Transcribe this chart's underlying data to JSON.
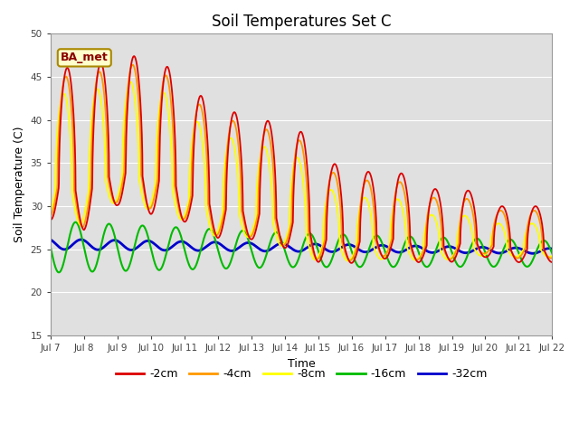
{
  "title": "Soil Temperatures Set C",
  "xlabel": "Time",
  "ylabel": "Soil Temperature (C)",
  "ylim": [
    15,
    50
  ],
  "yticks": [
    15,
    20,
    25,
    30,
    35,
    40,
    45,
    50
  ],
  "x_tick_labels": [
    "Jul 7",
    "Jul 8",
    "Jul 9",
    "Jul 10",
    "Jul 11",
    "Jul 12",
    "Jul 13",
    "Jul 14",
    "Jul 15",
    "Jul 16",
    "Jul 17",
    "Jul 18",
    "Jul 19",
    "Jul 20",
    "Jul 21",
    "Jul 22"
  ],
  "series_colors": [
    "#dd0000",
    "#ff9900",
    "#ffff00",
    "#00bb00",
    "#0000cc"
  ],
  "series_labels": [
    "-2cm",
    "-4cm",
    "-8cm",
    "-16cm",
    "-32cm"
  ],
  "series_linewidths": [
    1.3,
    1.3,
    1.3,
    1.5,
    2.0
  ],
  "annotation_text": "BA_met",
  "background_color": "#ffffff",
  "plot_bg_color": "#e0e0e0",
  "grid_color": "#ffffff",
  "title_fontsize": 12,
  "label_fontsize": 9
}
